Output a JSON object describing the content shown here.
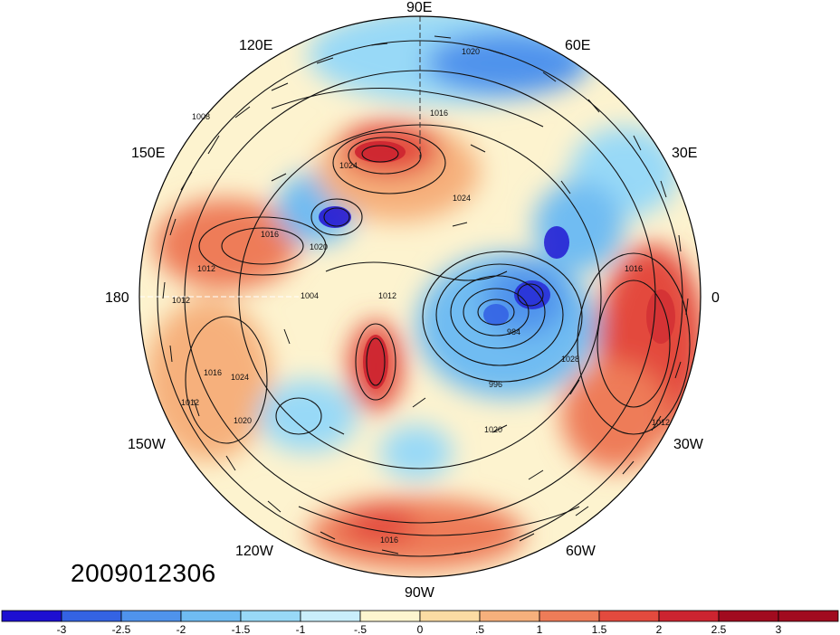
{
  "map": {
    "projection": "north-polar-stereographic",
    "lon_labels": [
      "90E",
      "60E",
      "30E",
      "0",
      "30W",
      "60W",
      "90W",
      "120W",
      "150W",
      "180",
      "150E",
      "120E"
    ],
    "contour_level_labels": [
      "1008",
      "1012",
      "1016",
      "1020",
      "1024",
      "1012",
      "1004",
      "1012",
      "1024",
      "1020",
      "1016",
      "1012",
      "1016",
      "1020",
      "1024",
      "1028",
      "984",
      "996",
      "1020",
      "1016",
      "1012",
      "1016"
    ]
  },
  "datestamp": "2009012306",
  "colorbar": {
    "labels": [
      "-3",
      "-2.5",
      "-2",
      "-1.5",
      "-1",
      "-.5",
      "0",
      ".5",
      "1",
      "1.5",
      "2",
      "2.5",
      "3"
    ],
    "colors": [
      "#1d0fd1",
      "#3463e3",
      "#4f93ec",
      "#6fbcf2",
      "#98d9f7",
      "#c9eefb",
      "#fdf5cf",
      "#fbdca3",
      "#f6b07c",
      "#ee7c58",
      "#e34a3e",
      "#cc2430",
      "#a10b1f"
    ]
  }
}
